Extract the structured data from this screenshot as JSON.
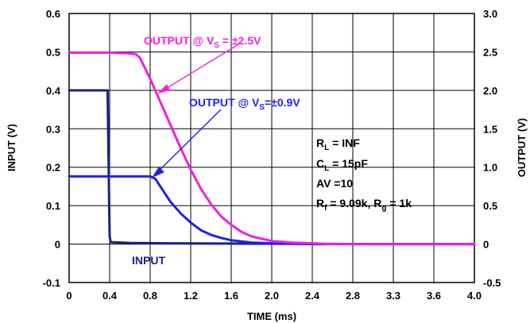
{
  "chart_data": {
    "type": "line",
    "xlabel": "TIME (ms)",
    "ylabel_left": "INPUT (V)",
    "ylabel_right": "OUTPUT (V)",
    "xlim": [
      0,
      4.0
    ],
    "ylim_left": [
      -0.1,
      0.6
    ],
    "ylim_right": [
      -0.5,
      3.0
    ],
    "grid": true,
    "x_ticks": [
      "0",
      "0.4",
      "0.8",
      "1.2",
      "1.6",
      "2.0",
      "2.4",
      "2.8",
      "3.3",
      "3.6",
      "4.0"
    ],
    "y_left_ticks": [
      "0.6",
      "0.5",
      "0.4",
      "0.3",
      "0.2",
      "0.1",
      "0",
      "-0.1"
    ],
    "y_right_ticks": [
      "3.0",
      "2.5",
      "2.0",
      "1.5",
      "1.0",
      "0.5",
      "0",
      "-0.5"
    ],
    "series": [
      {
        "name": "INPUT",
        "axis": "left",
        "color": "#1a237e",
        "x": [
          0,
          0.38,
          0.385,
          0.395,
          0.4,
          0.41,
          0.6,
          1.0,
          2.0,
          3.0,
          4.0
        ],
        "y": [
          0.4,
          0.4,
          0.3,
          0.1,
          0.02,
          0.005,
          0.003,
          0.002,
          0.001,
          0.0,
          0.0
        ]
      },
      {
        "name": "OUTPUT @ V_S=±0.9V",
        "axis": "right",
        "color": "#1e22e6",
        "x": [
          0,
          0.4,
          0.8,
          0.85,
          0.9,
          1.0,
          1.1,
          1.2,
          1.3,
          1.4,
          1.5,
          1.6,
          1.8,
          2.0,
          2.4,
          3.0,
          4.0
        ],
        "y": [
          0.88,
          0.88,
          0.88,
          0.85,
          0.75,
          0.55,
          0.4,
          0.28,
          0.18,
          0.12,
          0.08,
          0.05,
          0.02,
          0.01,
          0.0,
          0.0,
          0.0
        ]
      },
      {
        "name": "OUTPUT @ V_S = ±2.5V",
        "axis": "right",
        "color": "#ee22dd",
        "x": [
          0,
          0.4,
          0.6,
          0.66,
          0.7,
          0.8,
          0.9,
          1.0,
          1.1,
          1.2,
          1.3,
          1.4,
          1.5,
          1.6,
          1.7,
          1.8,
          2.0,
          2.2,
          2.6,
          3.0,
          4.0
        ],
        "y": [
          2.49,
          2.49,
          2.48,
          2.47,
          2.42,
          2.15,
          1.85,
          1.55,
          1.25,
          0.97,
          0.72,
          0.52,
          0.36,
          0.25,
          0.16,
          0.1,
          0.04,
          0.02,
          0.0,
          0.0,
          0.0
        ]
      }
    ],
    "annotations": {
      "out25_label": "OUTPUT @ V",
      "out25_sub": "S",
      "out25_rest": " = ±2.5V",
      "out09_label": "OUTPUT @ V",
      "out09_sub": "S",
      "out09_rest": "=±0.9V",
      "input_label": "INPUT",
      "rl_label": "R",
      "rl_sub": "L",
      "rl_rest": " = INF",
      "cl_label": "C",
      "cl_sub": "L",
      "cl_rest": " = 15pF",
      "av_line": "AV =10",
      "rf_label": "R",
      "rf_sub": "f",
      "rf_mid": " = 9.09k, R",
      "rg_sub": "g",
      "rg_rest": " = 1k"
    }
  }
}
